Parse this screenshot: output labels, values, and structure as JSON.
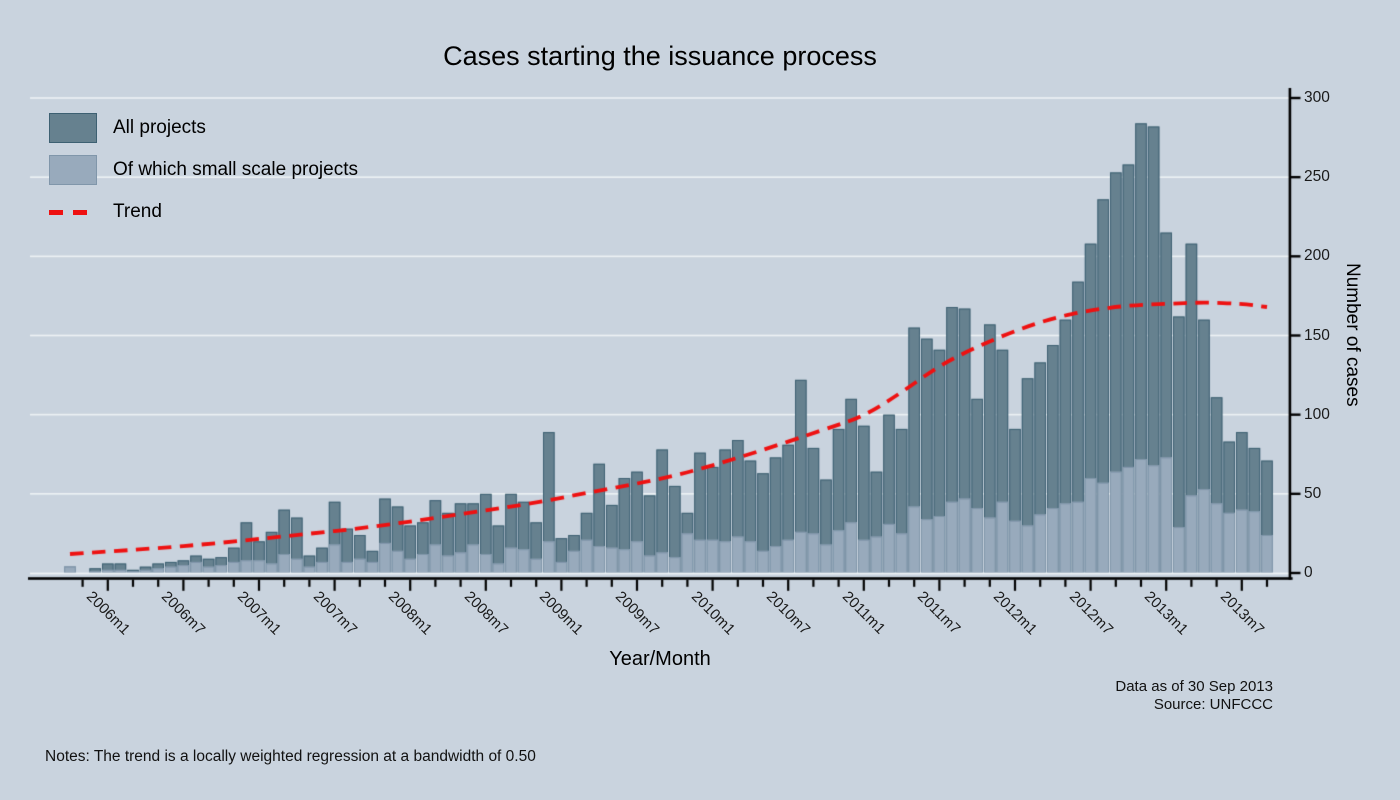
{
  "title": "Cases starting the issuance process",
  "x_axis_title": "Year/Month",
  "y_axis_title": "Number of cases",
  "footer": {
    "line1": "Data as of 30 Sep 2013",
    "line2": "Source: UNFCCC"
  },
  "notes": "Notes: The trend is a locally weighted regression at a bandwidth of 0.50",
  "legend": {
    "items": [
      {
        "label": "All projects",
        "swatch": "all_projects"
      },
      {
        "label": "Of which small scale projects",
        "swatch": "small_scale"
      },
      {
        "label": "Trend",
        "swatch": "trend"
      }
    ]
  },
  "chart_data": {
    "type": "bar",
    "bar_mode": "overlay",
    "grid": true,
    "legend_position": "top-left-inside",
    "y_axis_side": "right",
    "ylim": [
      0,
      300
    ],
    "y_ticks": [
      0,
      50,
      100,
      150,
      200,
      250,
      300
    ],
    "x_tick_labels": [
      "2006m1",
      "2006m7",
      "2007m1",
      "2007m7",
      "2008m1",
      "2008m7",
      "2009m1",
      "2009m7",
      "2010m1",
      "2010m7",
      "2011m1",
      "2011m7",
      "2012m1",
      "2012m7",
      "2013m1",
      "2013m7"
    ],
    "categories": [
      "2005m10",
      "2005m11",
      "2005m12",
      "2006m1",
      "2006m2",
      "2006m3",
      "2006m4",
      "2006m5",
      "2006m6",
      "2006m7",
      "2006m8",
      "2006m9",
      "2006m10",
      "2006m11",
      "2006m12",
      "2007m1",
      "2007m2",
      "2007m3",
      "2007m4",
      "2007m5",
      "2007m6",
      "2007m7",
      "2007m8",
      "2007m9",
      "2007m10",
      "2007m11",
      "2007m12",
      "2008m1",
      "2008m2",
      "2008m3",
      "2008m4",
      "2008m5",
      "2008m6",
      "2008m7",
      "2008m8",
      "2008m9",
      "2008m10",
      "2008m11",
      "2008m12",
      "2009m1",
      "2009m2",
      "2009m3",
      "2009m4",
      "2009m5",
      "2009m6",
      "2009m7",
      "2009m8",
      "2009m9",
      "2009m10",
      "2009m11",
      "2009m12",
      "2010m1",
      "2010m2",
      "2010m3",
      "2010m4",
      "2010m5",
      "2010m6",
      "2010m7",
      "2010m8",
      "2010m9",
      "2010m10",
      "2010m11",
      "2010m12",
      "2011m1",
      "2011m2",
      "2011m3",
      "2011m4",
      "2011m5",
      "2011m6",
      "2011m7",
      "2011m8",
      "2011m9",
      "2011m10",
      "2011m11",
      "2011m12",
      "2012m1",
      "2012m2",
      "2012m3",
      "2012m4",
      "2012m5",
      "2012m6",
      "2012m7",
      "2012m8",
      "2012m9",
      "2012m10",
      "2012m11",
      "2012m12",
      "2013m1",
      "2013m2",
      "2013m3",
      "2013m4",
      "2013m5",
      "2013m6",
      "2013m7",
      "2013m8",
      "2013m9"
    ],
    "series": [
      {
        "name": "All projects",
        "values": [
          4,
          0,
          3,
          6,
          6,
          2,
          4,
          6,
          7,
          8,
          11,
          9,
          10,
          16,
          32,
          20,
          26,
          40,
          35,
          11,
          16,
          45,
          28,
          24,
          14,
          47,
          42,
          30,
          32,
          46,
          38,
          44,
          44,
          50,
          30,
          50,
          45,
          32,
          89,
          22,
          24,
          38,
          69,
          43,
          60,
          64,
          49,
          78,
          55,
          38,
          76,
          67,
          78,
          84,
          71,
          63,
          73,
          81,
          122,
          79,
          59,
          91,
          110,
          93,
          64,
          100,
          91,
          155,
          148,
          141,
          168,
          167,
          110,
          157,
          141,
          91,
          123,
          133,
          144,
          160,
          184,
          208,
          236,
          253,
          258,
          284,
          282,
          215,
          162,
          208,
          160,
          111,
          83,
          89,
          79,
          71
        ]
      },
      {
        "name": "Of which small scale projects",
        "values": [
          4,
          0,
          1,
          2,
          2,
          1,
          2,
          3,
          4,
          5,
          7,
          4,
          5,
          7,
          8,
          8,
          6,
          12,
          9,
          4,
          7,
          18,
          7,
          9,
          7,
          19,
          14,
          9,
          12,
          18,
          11,
          13,
          18,
          12,
          6,
          16,
          15,
          9,
          20,
          7,
          14,
          21,
          17,
          16,
          15,
          20,
          11,
          13,
          10,
          25,
          21,
          21,
          20,
          23,
          20,
          14,
          17,
          21,
          26,
          25,
          18,
          27,
          32,
          21,
          23,
          31,
          25,
          42,
          34,
          36,
          45,
          47,
          41,
          35,
          45,
          33,
          30,
          37,
          41,
          44,
          45,
          60,
          57,
          64,
          67,
          72,
          68,
          73,
          29,
          49,
          53,
          44,
          38,
          40,
          39,
          24
        ]
      }
    ],
    "trend": {
      "name": "Trend",
      "style": "dashed",
      "points": [
        [
          "2005m10",
          12
        ],
        [
          "2006m4",
          15
        ],
        [
          "2006m10",
          19
        ],
        [
          "2007m4",
          24
        ],
        [
          "2007m10",
          29
        ],
        [
          "2008m4",
          36
        ],
        [
          "2008m10",
          43
        ],
        [
          "2009m4",
          52
        ],
        [
          "2009m10",
          61
        ],
        [
          "2010m4",
          75
        ],
        [
          "2010m10",
          91
        ],
        [
          "2011m1",
          99
        ],
        [
          "2011m4",
          114
        ],
        [
          "2011m7",
          131
        ],
        [
          "2011m10",
          143
        ],
        [
          "2012m1",
          153
        ],
        [
          "2012m4",
          161
        ],
        [
          "2012m7",
          166
        ],
        [
          "2012m10",
          169
        ],
        [
          "2013m1",
          170
        ],
        [
          "2013m4",
          171
        ],
        [
          "2013m7",
          170
        ],
        [
          "2013m9",
          168
        ]
      ]
    },
    "colors": {
      "all_projects": "#66818F",
      "all_projects_border": "#3D6072",
      "small_scale": "#98AABC",
      "small_scale_border": "#8096AA",
      "trend": "#EE1111",
      "background": "#C9D3DE",
      "gridline": "#EDF2F4",
      "axis": "#000000"
    }
  }
}
